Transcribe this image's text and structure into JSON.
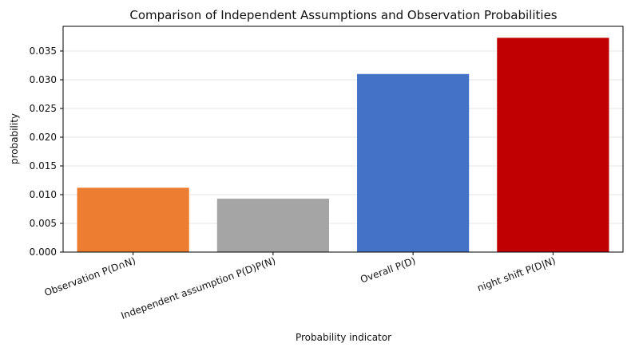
{
  "chart_data": {
    "type": "bar",
    "title": "Comparison of Independent Assumptions and Observation Probabilities",
    "xlabel": "Probability indicator",
    "ylabel": "probability",
    "categories": [
      "Observation P(D∩N)",
      "Independent assumption P(D)P(N)",
      "Overall P(D)",
      "night shift P(D|N)"
    ],
    "values": [
      0.0112,
      0.0093,
      0.031,
      0.0373
    ],
    "colors": [
      "#ED7D31",
      "#A5A5A5",
      "#4472C4",
      "#C00000"
    ],
    "ylim": [
      0,
      0.0393
    ],
    "yticks": [
      "0.000",
      "0.005",
      "0.010",
      "0.015",
      "0.020",
      "0.025",
      "0.030",
      "0.035"
    ],
    "ytick_values": [
      0,
      0.005,
      0.01,
      0.015,
      0.02,
      0.025,
      0.03,
      0.035
    ],
    "grid": true,
    "legend": "none"
  }
}
